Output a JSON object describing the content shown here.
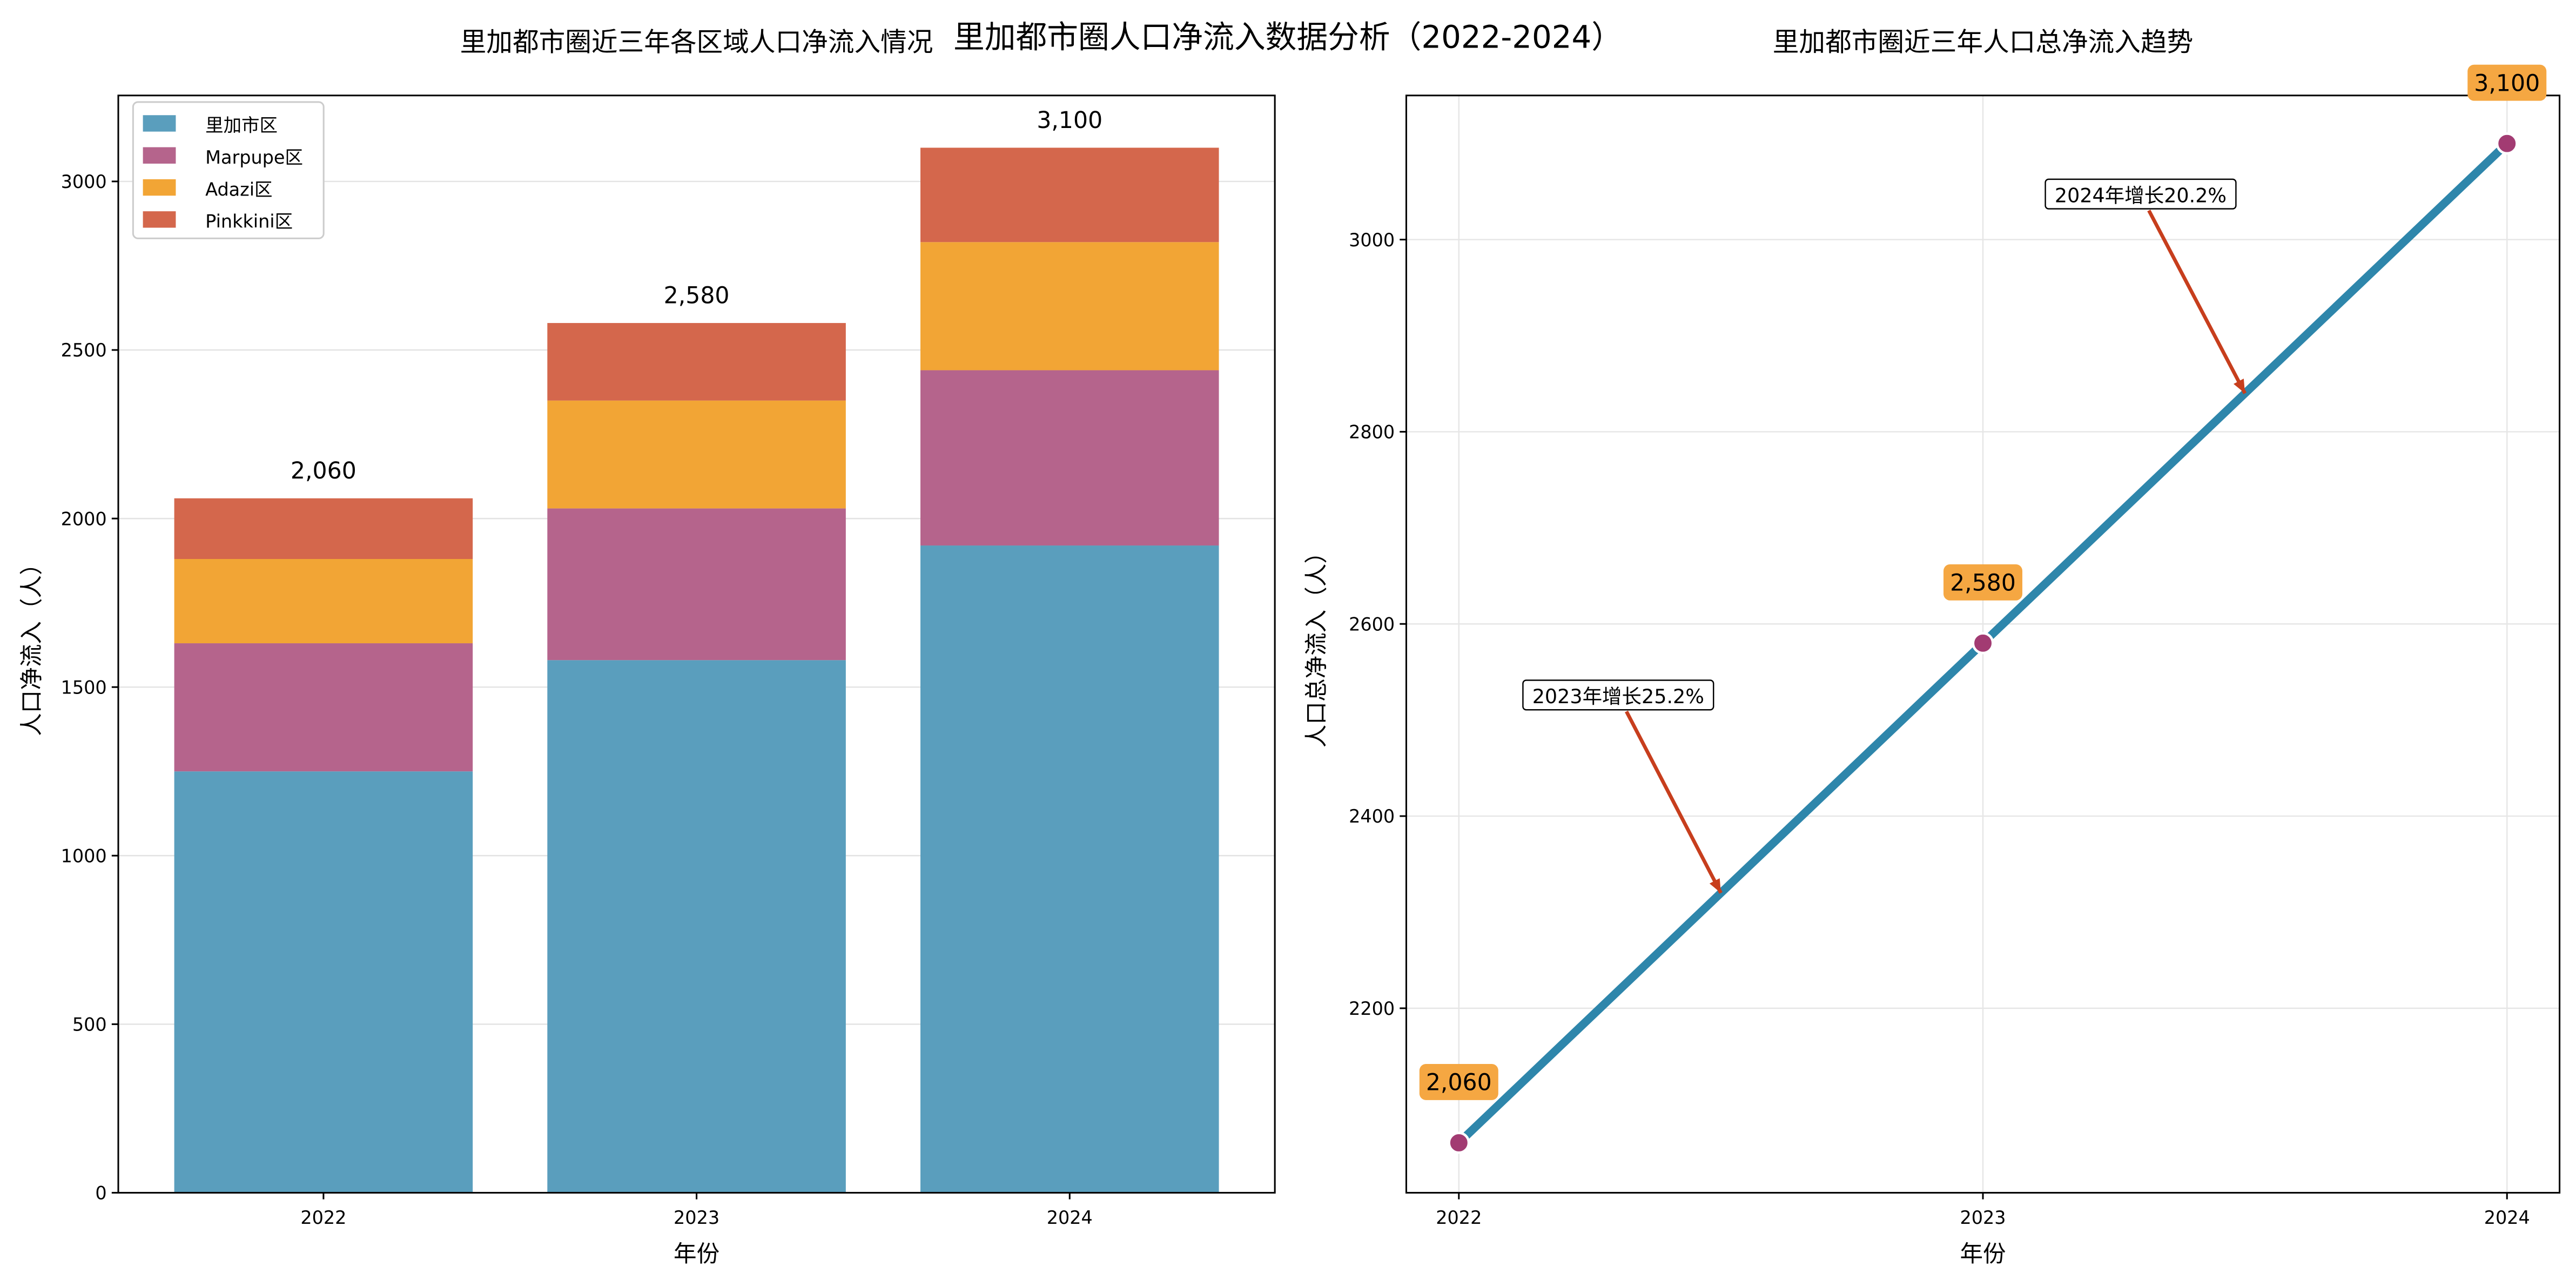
{
  "suptitle": "里加都市圈人口净流入数据分析（2022-2024）",
  "colors": {
    "blue": "#5a9ebd",
    "purple": "#b5648c",
    "orange": "#f2a535",
    "red": "#d4674c",
    "line": "#2e86ab",
    "marker": "#a23b72",
    "arrow": "#c73e1d",
    "label_bg": "#f5a742"
  },
  "chart_data": [
    {
      "type": "bar",
      "stacked": true,
      "title": "里加都市圈近三年各区域人口净流入情况",
      "xlabel": "年份",
      "ylabel": "人口净流入（人）",
      "categories": [
        "2022",
        "2023",
        "2024"
      ],
      "series": [
        {
          "name": "里加市区",
          "values": [
            1250,
            1580,
            1920
          ],
          "color": "#5a9ebd"
        },
        {
          "name": "Marpupe区",
          "values": [
            380,
            450,
            520
          ],
          "color": "#b5648c"
        },
        {
          "name": "Adazi区",
          "values": [
            250,
            320,
            380
          ],
          "color": "#f2a535"
        },
        {
          "name": "Pinkkini区",
          "values": [
            180,
            230,
            280
          ],
          "color": "#d4674c"
        }
      ],
      "total_labels": [
        "2,060",
        "2,580",
        "3,100"
      ],
      "yticks": [
        0,
        500,
        1000,
        1500,
        2000,
        2500,
        3000
      ],
      "ylim": [
        0,
        3255
      ],
      "grid": true,
      "legend": "top-left"
    },
    {
      "type": "line",
      "title": "里加都市圈近三年人口总净流入趋势",
      "xlabel": "年份",
      "ylabel": "人口总净流入（人）",
      "x": [
        "2022",
        "2023",
        "2024"
      ],
      "y": [
        2060,
        2580,
        3100
      ],
      "point_labels": [
        "2,060",
        "2,580",
        "3,100"
      ],
      "yticks": [
        2200,
        2400,
        2600,
        2800,
        3000
      ],
      "ylim": [
        2008,
        3150
      ],
      "grid": true,
      "annotations": [
        {
          "text": "2023年增长25.2%",
          "x": 2022.5,
          "y": 2320
        },
        {
          "text": "2024年增长20.2%",
          "x": 2023.5,
          "y": 2840
        }
      ]
    }
  ]
}
